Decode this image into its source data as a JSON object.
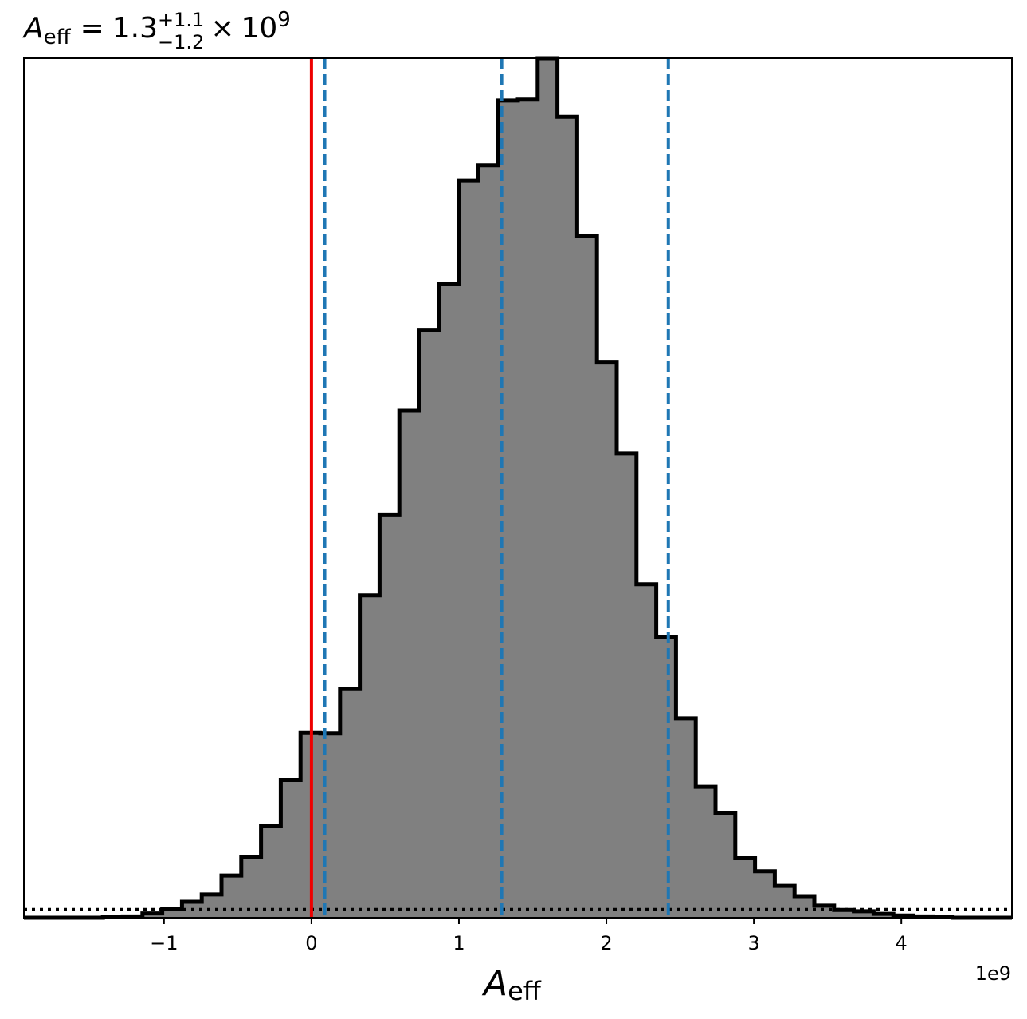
{
  "chart_data": {
    "type": "histogram",
    "title": {
      "symbol": "A",
      "subscript": "eff",
      "equals": "=",
      "median": "1.3",
      "upper": "+1.1",
      "lower": "−1.2",
      "times": "×",
      "base": "10",
      "exponent": "9"
    },
    "xlabel": {
      "symbol": "A",
      "subscript": "eff"
    },
    "x_offset_label": "1e9",
    "xlim": [
      -1.95,
      4.75
    ],
    "ylim": [
      0,
      1.0
    ],
    "y_axis_visible": false,
    "x_ticks": [
      {
        "value": -1,
        "label": "−1"
      },
      {
        "value": 0,
        "label": "0"
      },
      {
        "value": 1,
        "label": "1"
      },
      {
        "value": 2,
        "label": "2"
      },
      {
        "value": 3,
        "label": "3"
      },
      {
        "value": 4,
        "label": "4"
      }
    ],
    "bin_edges": [
      -1.95,
      -1.816,
      -1.682,
      -1.548,
      -1.414,
      -1.28,
      -1.146,
      -1.012,
      -0.878,
      -0.744,
      -0.61,
      -0.476,
      -0.342,
      -0.208,
      -0.074,
      0.06,
      0.194,
      0.328,
      0.462,
      0.596,
      0.73,
      0.864,
      0.998,
      1.132,
      1.266,
      1.4,
      1.534,
      1.668,
      1.802,
      1.936,
      2.07,
      2.204,
      2.338,
      2.472,
      2.606,
      2.74,
      2.874,
      3.008,
      3.142,
      3.276,
      3.41,
      3.544,
      3.678,
      3.812,
      3.946,
      4.08,
      4.214,
      4.348,
      4.482,
      4.616,
      4.75
    ],
    "bin_heights": [
      0.0,
      0.0,
      0.0,
      0.0,
      0.0005,
      0.0015,
      0.005,
      0.01,
      0.0185,
      0.027,
      0.049,
      0.071,
      0.107,
      0.16,
      0.215,
      0.2145,
      0.266,
      0.375,
      0.469,
      0.59,
      0.684,
      0.737,
      0.858,
      0.875,
      0.951,
      0.952,
      1.0,
      0.932,
      0.793,
      0.646,
      0.54,
      0.388,
      0.327,
      0.232,
      0.153,
      0.122,
      0.07,
      0.054,
      0.037,
      0.025,
      0.014,
      0.009,
      0.0075,
      0.0045,
      0.0025,
      0.0015,
      0.0005,
      0.0,
      0.0,
      0.0
    ],
    "reference_line": {
      "x": 0.0,
      "color": "#ee0000",
      "style": "solid"
    },
    "quantile_lines": [
      {
        "x": 0.09,
        "color": "#1f77b4",
        "style": "dashed"
      },
      {
        "x": 1.29,
        "color": "#1f77b4",
        "style": "dashed"
      },
      {
        "x": 2.42,
        "color": "#1f77b4",
        "style": "dashed"
      }
    ],
    "baseline_dotted": {
      "y": 0.0095,
      "color": "#000000",
      "style": "dotted"
    },
    "histogram_fill": "#808080",
    "histogram_edge": "#000000"
  }
}
